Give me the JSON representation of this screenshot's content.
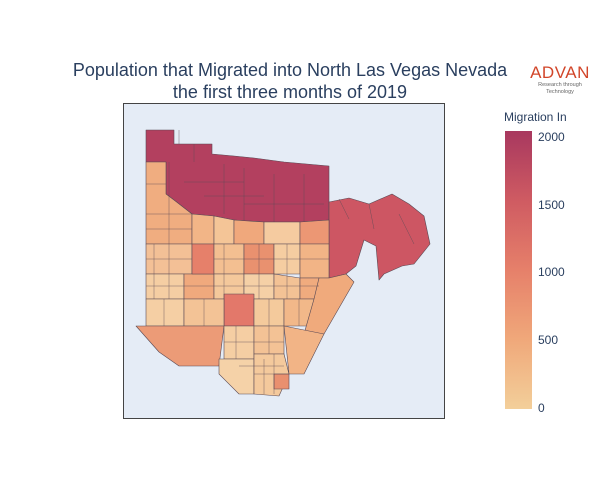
{
  "title_line1": "Population that Migrated into North Las Vegas Nevada",
  "title_line2": "the first three months of 2019",
  "logo": {
    "brand": "ADVAN",
    "tagline": "Research through Technology"
  },
  "colorbar": {
    "title": "Migration In",
    "ticks": [
      "2000",
      "1500",
      "1000",
      "500",
      "0"
    ],
    "min": 0,
    "max": 2050,
    "colors": [
      "#f3cf9a",
      "#f0a87a",
      "#e6806a",
      "#cf5b62",
      "#a8385f"
    ]
  },
  "chart_data": {
    "type": "choropleth",
    "title": "Population that Migrated into North Las Vegas Nevada the first three months of 2019",
    "legend_title": "Migration In",
    "color_range": [
      0,
      2050
    ],
    "regions_note": "census block groups of North Las Vegas; north band ~2000, east region ~1800, central/south mostly 200-1100"
  }
}
